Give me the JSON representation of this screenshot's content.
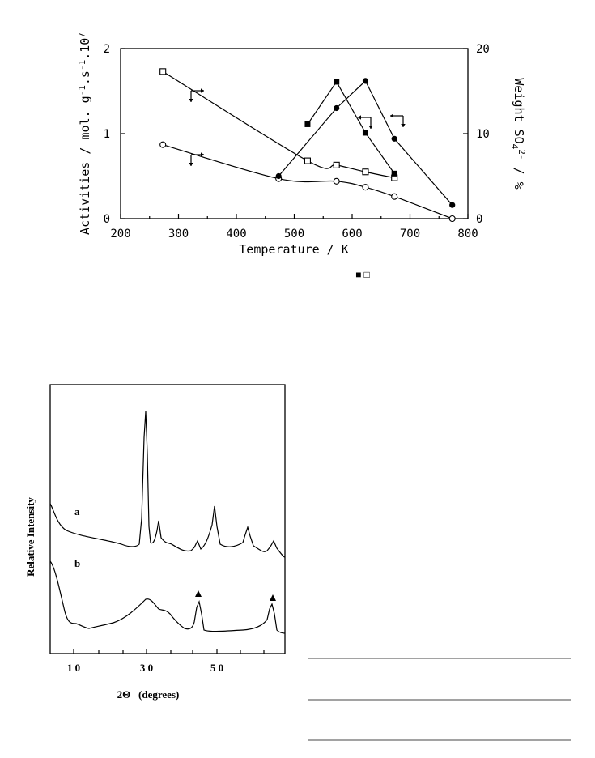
{
  "chart_data": [
    {
      "type": "scatter",
      "xlabel": "Temperature / K",
      "ylabel_left": "Activities / mol. g-1.s-1.107",
      "ylabel_right": "Weight SO42- / %",
      "xlim": [
        200,
        800
      ],
      "ylim_left": [
        0,
        2
      ],
      "ylim_right": [
        0,
        20
      ],
      "x_ticks": [
        "200",
        "300",
        "400",
        "500",
        "600",
        "700",
        "800"
      ],
      "y_left_ticks": [
        "0",
        "1",
        "2"
      ],
      "y_right_ticks": [
        "0",
        "10",
        "20"
      ],
      "series": [
        {
          "marker": "open-square",
          "axis": "left",
          "x": [
            273,
            523,
            573,
            623,
            673
          ],
          "y": [
            1.73,
            0.68,
            0.63,
            0.55,
            0.48
          ]
        },
        {
          "marker": "open-circle",
          "axis": "left",
          "x": [
            273,
            473,
            573,
            623,
            673,
            773
          ],
          "y": [
            0.87,
            0.47,
            0.44,
            0.37,
            0.26,
            0.0
          ]
        },
        {
          "marker": "filled-square",
          "axis": "right",
          "x": [
            523,
            573,
            623,
            673
          ],
          "y": [
            11.1,
            16.1,
            10.1,
            5.3
          ]
        },
        {
          "marker": "filled-circle",
          "axis": "right",
          "x": [
            473,
            573,
            623,
            673,
            773
          ],
          "y": [
            5.0,
            13.0,
            16.2,
            9.4,
            1.6
          ]
        }
      ],
      "legend_symbols": "■ □"
    },
    {
      "type": "line",
      "ylabel": "Relative Intensity",
      "xlabel": "2Θ   (degrees)",
      "x_ticks": [
        "1 0",
        "3 0",
        "5 0"
      ],
      "series": [
        {
          "name": "a",
          "peaks_2theta": [
            30.2,
            34.5,
            45.0,
            50.1,
            59.8,
            65.5
          ]
        },
        {
          "name": "b",
          "peaks_2theta": [
            30.5,
            35.5,
            45.3,
            65.8
          ],
          "marked_peaks": [
            45.3,
            65.8
          ]
        }
      ]
    }
  ]
}
